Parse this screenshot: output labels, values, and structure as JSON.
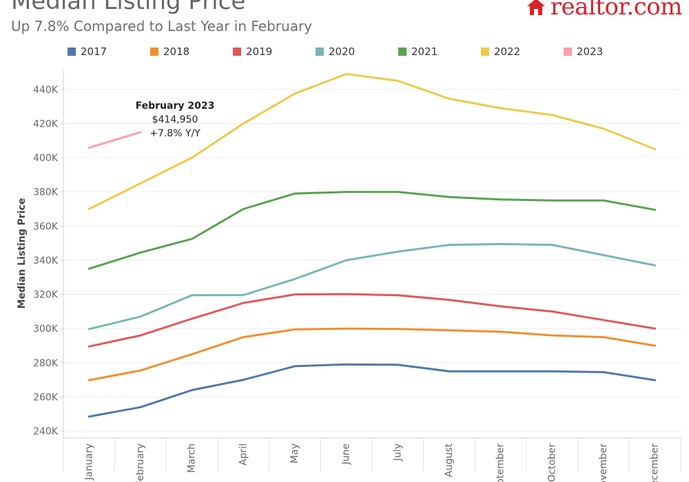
{
  "header": {
    "title": "Median Listing Price",
    "subtitle": "Up 7.8% Compared to Last Year in February",
    "brand": "realtor.com"
  },
  "colors": {
    "2017": "#4e79a7",
    "2018": "#f28e2b",
    "2019": "#e15759",
    "2020": "#76b7b2",
    "2021": "#59a14f",
    "2022": "#edc948",
    "2023": "#ff9da7",
    "brand": "#d92228"
  },
  "chart_data": {
    "type": "line",
    "title": "Median Listing Price",
    "subtitle": "Up 7.8% Compared to Last Year in February",
    "ylabel": "Median Listing Price",
    "xlabel": "",
    "ylim": [
      236000,
      452000
    ],
    "yticks": [
      240000,
      260000,
      280000,
      300000,
      320000,
      340000,
      360000,
      380000,
      400000,
      420000,
      440000
    ],
    "ytick_labels": [
      "240K",
      "260K",
      "280K",
      "300K",
      "320K",
      "340K",
      "360K",
      "380K",
      "400K",
      "420K",
      "440K"
    ],
    "categories": [
      "January",
      "February",
      "March",
      "April",
      "May",
      "June",
      "July",
      "August",
      "September",
      "October",
      "November",
      "December"
    ],
    "legend_placement": "top",
    "grid": "horizontal",
    "series": [
      {
        "name": "2017",
        "values": [
          248500,
          254000,
          264000,
          270000,
          278000,
          279000,
          278800,
          275000,
          275000,
          275000,
          274500,
          269800
        ]
      },
      {
        "name": "2018",
        "values": [
          269800,
          275500,
          285000,
          295000,
          299500,
          300000,
          299800,
          299000,
          298200,
          296000,
          295000,
          290000
        ]
      },
      {
        "name": "2019",
        "values": [
          289500,
          296000,
          305800,
          315000,
          320000,
          320200,
          319500,
          316800,
          313000,
          310000,
          305000,
          300000
        ]
      },
      {
        "name": "2020",
        "values": [
          299700,
          307000,
          319500,
          319600,
          329000,
          340000,
          345000,
          349000,
          349500,
          349000,
          343000,
          337000
        ]
      },
      {
        "name": "2021",
        "values": [
          335000,
          344500,
          352500,
          370000,
          379000,
          380000,
          380000,
          377000,
          375500,
          375000,
          375000,
          369500
        ]
      },
      {
        "name": "2022",
        "values": [
          370000,
          385000,
          400000,
          420000,
          437500,
          449000,
          445000,
          434500,
          429000,
          425000,
          417000,
          405000
        ]
      },
      {
        "name": "2023",
        "values": [
          405800,
          414950,
          null,
          null,
          null,
          null,
          null,
          null,
          null,
          null,
          null,
          null
        ]
      }
    ],
    "annotation": {
      "series": "2023",
      "category": "February",
      "lines": [
        "February 2023",
        "$414,950",
        "+7.8% Y/Y"
      ]
    }
  }
}
